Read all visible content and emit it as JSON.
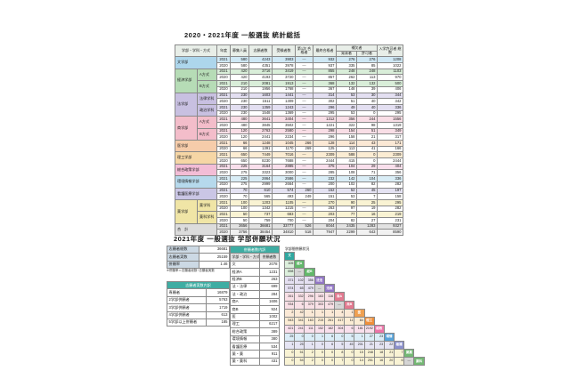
{
  "section1": {
    "title": "2020・2021年度  一般選抜  統計総括",
    "columns": {
      "group": "学部・学科・方式",
      "year": "年度",
      "main": [
        "募集人員",
        "志願者数",
        "受験者数",
        "第1次 合格者",
        "最終合格者"
      ],
      "hoketsu": "補欠者",
      "hoketsu_subs": [
        "発表者",
        "許可者"
      ],
      "total": "入学許可者 総数"
    },
    "groups": [
      {
        "faculty": "文学部",
        "label": "#add6ec",
        "tint": "#cfe8f5",
        "subs": [
          {
            "name": "",
            "rows": [
              {
                "year": "2021",
                "v": [
                  "580",
                  "4243",
                  "3903",
                  "―",
                  "932",
                  "276",
                  "276",
                  "1208"
                ]
              },
              {
                "year": "2020",
                "v": [
                  "580",
                  "4351",
                  "3978",
                  "―",
                  "937",
                  "335",
                  "85",
                  "1022"
                ]
              }
            ]
          }
        ]
      },
      {
        "faculty": "経済学部",
        "label": "#b6dcb6",
        "tint": "#d9eed9",
        "subs": [
          {
            "name": "A方式",
            "rows": [
              {
                "year": "2021",
                "v": [
                  "420",
                  "3716",
                  "3419",
                  "―",
                  "855",
                  "248",
                  "248",
                  "1103"
                ]
              },
              {
                "year": "2020",
                "v": [
                  "420",
                  "4193",
                  "3720",
                  "―",
                  "857",
                  "262",
                  "113",
                  "970"
                ]
              }
            ]
          },
          {
            "name": "B方式",
            "rows": [
              {
                "year": "2021",
                "v": [
                  "210",
                  "2081",
                  "1913",
                  "―",
                  "368",
                  "132",
                  "132",
                  "500"
                ]
              },
              {
                "year": "2020",
                "v": [
                  "210",
                  "1956",
                  "1768",
                  "―",
                  "367",
                  "148",
                  "39",
                  "406"
                ]
              }
            ]
          }
        ]
      },
      {
        "faculty": "法学部",
        "label": "#c8c0e1",
        "tint": "#e3dff1",
        "subs": [
          {
            "name": "法律学科",
            "rows": [
              {
                "year": "2021",
                "v": [
                  "230",
                  "1603",
                  "1441",
                  "―",
                  "314",
                  "53",
                  "30",
                  "344"
                ]
              },
              {
                "year": "2020",
                "v": [
                  "230",
                  "1511",
                  "1309",
                  "―",
                  "302",
                  "51",
                  "40",
                  "342"
                ]
              }
            ]
          },
          {
            "name": "政治学科",
            "rows": [
              {
                "year": "2021",
                "v": [
                  "230",
                  "1359",
                  "1243",
                  "―",
                  "296",
                  "49",
                  "40",
                  "336"
                ]
              },
              {
                "year": "2020",
                "v": [
                  "230",
                  "1548",
                  "1369",
                  "―",
                  "295",
                  "53",
                  "0",
                  "295"
                ]
              }
            ]
          }
        ]
      },
      {
        "faculty": "商学部",
        "label": "#f3bdca",
        "tint": "#f9dee6",
        "subs": [
          {
            "name": "A方式",
            "rows": [
              {
                "year": "2021",
                "v": [
                  "480",
                  "3641",
                  "3404",
                  "―",
                  "1312",
                  "356",
                  "244",
                  "1556"
                ]
              },
              {
                "year": "2020",
                "v": [
                  "480",
                  "3845",
                  "3502",
                  "―",
                  "1221",
                  "322",
                  "98",
                  "1319"
                ]
              }
            ]
          },
          {
            "name": "B方式",
            "rows": [
              {
                "year": "2021",
                "v": [
                  "120",
                  "2763",
                  "2580",
                  "―",
                  "298",
                  "154",
                  "51",
                  "349"
                ]
              },
              {
                "year": "2020",
                "v": [
                  "120",
                  "2441",
                  "2234",
                  "―",
                  "296",
                  "158",
                  "21",
                  "317"
                ]
              }
            ]
          }
        ]
      },
      {
        "faculty": "医学部",
        "label": "#f6ccaa",
        "tint": "#fbe8d5",
        "subs": [
          {
            "name": "",
            "rows": [
              {
                "year": "2021",
                "v": [
                  "66",
                  "1248",
                  "1045",
                  "266",
                  "128",
                  "114",
                  "43",
                  "171"
                ]
              },
              {
                "year": "2020",
                "v": [
                  "66",
                  "1391",
                  "1170",
                  "269",
                  "125",
                  "113",
                  "41",
                  "166"
                ]
              }
            ]
          }
        ]
      },
      {
        "faculty": "理工学部",
        "label": "#f6d6a5",
        "tint": "#fbecd3",
        "subs": [
          {
            "name": "",
            "rows": [
              {
                "year": "2021",
                "v": [
                  "650",
                  "7449",
                  "7016",
                  "―",
                  "2309",
                  "588",
                  "0",
                  "2309"
                ]
              },
              {
                "year": "2020",
                "v": [
                  "650",
                  "8230",
                  "7688",
                  "―",
                  "2444",
                  "415",
                  "0",
                  "2444"
                ]
              }
            ]
          }
        ]
      },
      {
        "faculty": "総合政策学部",
        "label": "#f3bdd6",
        "tint": "#f9dfec",
        "subs": [
          {
            "name": "",
            "rows": [
              {
                "year": "2021",
                "v": [
                  "225",
                  "3164",
                  "2885",
                  "―",
                  "375",
                  "104",
                  "29",
                  "404"
                ]
              },
              {
                "year": "2020",
                "v": [
                  "275",
                  "3323",
                  "3000",
                  "―",
                  "285",
                  "108",
                  "71",
                  "356"
                ]
              }
            ]
          }
        ]
      },
      {
        "faculty": "環境情報学部",
        "label": "#b6d9ec",
        "tint": "#d9edf6",
        "subs": [
          {
            "name": "",
            "rows": [
              {
                "year": "2021",
                "v": [
                  "225",
                  "2864",
                  "2586",
                  "―",
                  "232",
                  "142",
                  "104",
                  "336"
                ]
              },
              {
                "year": "2020",
                "v": [
                  "275",
                  "2999",
                  "2664",
                  "―",
                  "200",
                  "102",
                  "82",
                  "282"
                ]
              }
            ]
          }
        ]
      },
      {
        "faculty": "看護医療学部",
        "label": "#cac6e5",
        "tint": "#e5e3f3",
        "subs": [
          {
            "name": "",
            "rows": [
              {
                "year": "2021",
                "v": [
                  "70",
                  "610",
                  "574",
                  "260",
                  "152",
                  "52",
                  "45",
                  "197"
                ]
              },
              {
                "year": "2020",
                "v": [
                  "70",
                  "565",
                  "493",
                  "249",
                  "151",
                  "53",
                  "7",
                  "158"
                ]
              }
            ]
          }
        ]
      },
      {
        "faculty": "薬学部",
        "label": "#f0e5a6",
        "tint": "#f9f3d3",
        "subs": [
          {
            "name": "薬学科",
            "rows": [
              {
                "year": "2021",
                "v": [
                  "100",
                  "1203",
                  "1105",
                  "―",
                  "270",
                  "90",
                  "25",
                  "295"
                ]
              },
              {
                "year": "2020",
                "v": [
                  "100",
                  "1342",
                  "1215",
                  "―",
                  "263",
                  "97",
                  "19",
                  "282"
                ]
              }
            ]
          },
          {
            "name": "薬科学科",
            "rows": [
              {
                "year": "2021",
                "v": [
                  "50",
                  "737",
                  "683",
                  "―",
                  "203",
                  "77",
                  "16",
                  "219"
                ]
              },
              {
                "year": "2020",
                "v": [
                  "50",
                  "759",
                  "700",
                  "―",
                  "204",
                  "82",
                  "27",
                  "231"
                ]
              }
            ]
          }
        ]
      },
      {
        "faculty": "合　計",
        "label": "#dcdcdc",
        "tint": "#e2e2e2",
        "tint2020": "#f1f1f1",
        "subs": [
          {
            "name": "",
            "rows": [
              {
                "year": "2021",
                "v": [
                  "3656",
                  "36681",
                  "33777",
                  "526",
                  "8044",
                  "2435",
                  "1283",
                  "9327"
                ]
              },
              {
                "year": "2020",
                "v": [
                  "3756",
                  "38454",
                  "34810",
                  "518",
                  "7947",
                  "2299",
                  "643",
                  "8590"
                ]
              }
            ]
          }
        ]
      }
    ]
  },
  "section2": {
    "title": "2021年度  一般選抜  学部併願状況",
    "summary": {
      "rows": [
        {
          "label": "志願者総数",
          "value": "36681"
        },
        {
          "label": "志願者実数",
          "value": "25159"
        },
        {
          "label": "併願率",
          "value": "1.46"
        }
      ],
      "note": "※併願率＝志願者総数÷志願者実数"
    },
    "breakdown": {
      "header": "志願者実数内訳",
      "rows": [
        {
          "label": "専願者",
          "value": "16879"
        },
        {
          "label": "2学部併願者",
          "value": "5763"
        },
        {
          "label": "3学部併願者",
          "value": "1719"
        },
        {
          "label": "4学部併願者",
          "value": "613"
        },
        {
          "label": "5学部以上併願者",
          "value": "185"
        }
      ]
    },
    "heigan": {
      "header": "併願者数内訳",
      "columns": [
        "学部・学科・方式",
        "併願者数"
      ],
      "rows": [
        {
          "label": "文",
          "value": "2078"
        },
        {
          "label": "経済A",
          "value": "1231"
        },
        {
          "label": "経済B",
          "value": "263"
        },
        {
          "label": "法・法律",
          "value": "699"
        },
        {
          "label": "法・政治",
          "value": "284"
        },
        {
          "label": "商A",
          "value": "1606"
        },
        {
          "label": "商B",
          "value": "924"
        },
        {
          "label": "医",
          "value": "1002"
        },
        {
          "label": "理工",
          "value": "6217"
        },
        {
          "label": "総合政策",
          "value": "389"
        },
        {
          "label": "環境情報",
          "value": "380"
        },
        {
          "label": "看護医療",
          "value": "534"
        },
        {
          "label": "薬・薬",
          "value": "911"
        },
        {
          "label": "薬・薬科",
          "value": "431"
        }
      ]
    },
    "matrix": {
      "title": "学部間併願状況",
      "rows": [
        {
          "label": "文",
          "color": "#2fa8a0",
          "tint": "#d6efec",
          "v": []
        },
        {
          "label": "経A",
          "color": "#62b86a",
          "tint": "#dcefdc",
          "v": [
            "105"
          ]
        },
        {
          "label": "経B",
          "color": "#62b86a",
          "tint": "#dcefdc",
          "v": [
            "698",
            "―"
          ]
        },
        {
          "label": "法法",
          "color": "#9276c6",
          "tint": "#e5e0f2",
          "v": [
            "371",
            "102",
            "356"
          ]
        },
        {
          "label": "法政",
          "color": "#9276c6",
          "tint": "#e5e0f2",
          "v": [
            "574",
            "65",
            "479",
            "―"
          ]
        },
        {
          "label": "商A",
          "color": "#e2798f",
          "tint": "#f9e0e6",
          "v": [
            "261",
            "332",
            "296",
            "163",
            "116"
          ]
        },
        {
          "label": "商B",
          "color": "#e2798f",
          "tint": "#f9e0e6",
          "v": [
            "934",
            "6",
            "379",
            "303",
            "479",
            "―"
          ]
        },
        {
          "label": "医",
          "color": "#efa051",
          "tint": "#fbe9d6",
          "v": [
            "2",
            "42",
            "1",
            "1",
            "1",
            "4",
            "1"
          ]
        },
        {
          "label": "理工",
          "color": "#ef8f3a",
          "tint": "#fbecd4",
          "v": [
            "543",
            "341",
            "163",
            "215",
            "261",
            "417",
            "11",
            "84"
          ]
        },
        {
          "label": "総政",
          "color": "#ec74a8",
          "tint": "#f9e0ec",
          "v": [
            "421",
            "241",
            "111",
            "152",
            "182",
            "304",
            "6",
            "181",
            "2192"
          ]
        },
        {
          "label": "環情",
          "color": "#57a3d9",
          "tint": "#dbedf7",
          "v": [
            "25",
            "0",
            "0",
            "1",
            "6",
            "0",
            "5",
            "1",
            "27",
            "23"
          ]
        },
        {
          "label": "看護",
          "color": "#8b90cc",
          "tint": "#e6e5f4",
          "v": [
            "1",
            "25",
            "1",
            "0",
            "6",
            "5",
            "45",
            "201",
            "21",
            "23",
            "22"
          ]
        },
        {
          "label": "薬薬",
          "color": "#74b874",
          "tint": "#f9f3d4",
          "v": [
            "0",
            "51",
            "2",
            "0",
            "0",
            "8",
            "0",
            "15",
            "248",
            "18",
            "21",
            "7"
          ]
        },
        {
          "label": "薬科",
          "color": "#74b874",
          "tint": "#f9f3d4",
          "v": [
            "0",
            "54",
            "2",
            "0",
            "0",
            "7",
            "0",
            "14",
            "251",
            "16",
            "20",
            "6",
            "―"
          ]
        }
      ]
    }
  }
}
